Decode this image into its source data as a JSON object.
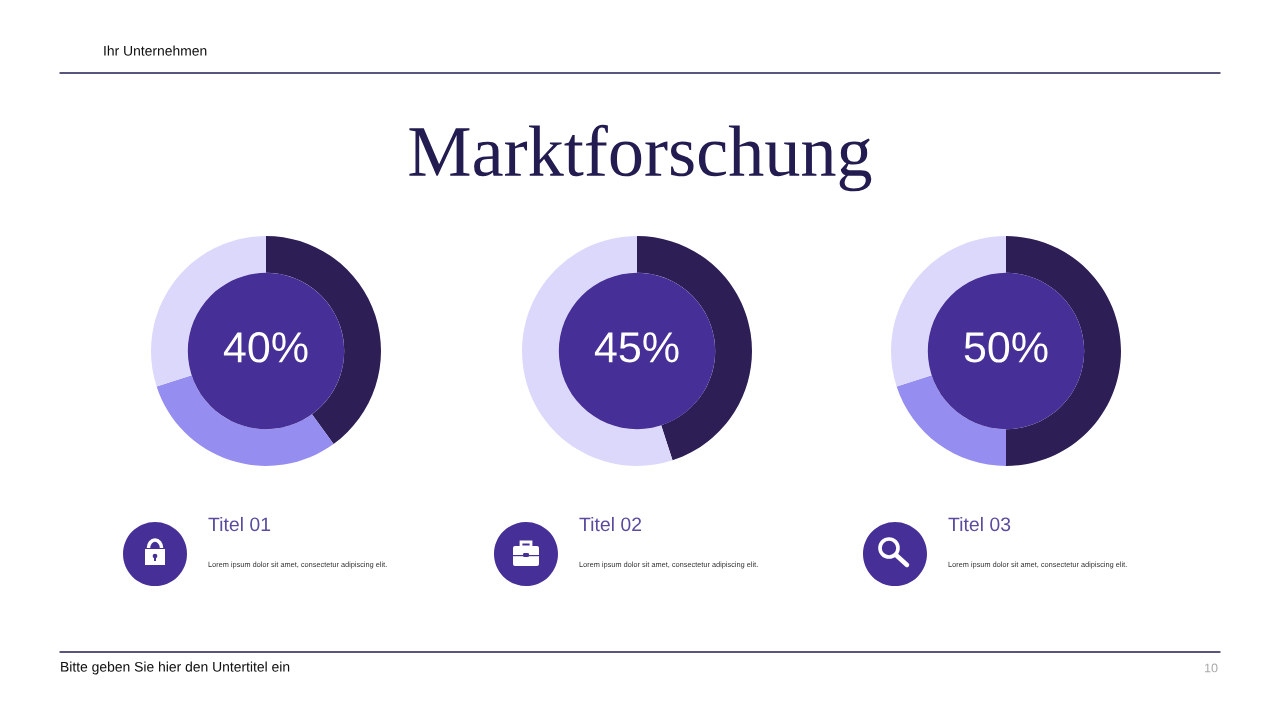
{
  "chart_data": [
    {
      "type": "other",
      "title": "Marktforschung",
      "annotations": [
        "Ihr Unternehmen",
        "Bitte geben Sie hier den Untertitel ein",
        "10"
      ]
    },
    {
      "type": "donut",
      "title": "Titel 01",
      "annotations": [
        "Lorem ipsum dolor sit amet, consectetur adipiscing elit."
      ],
      "categories": [
        null,
        null,
        null
      ],
      "values": [
        40,
        30,
        30
      ],
      "colors": [
        "#2d1e56",
        "#958ef0",
        "#dcd8fb"
      ],
      "value_labels": [
        "40%",
        null,
        null
      ]
    },
    {
      "type": "donut",
      "title": "Titel 02",
      "annotations": [
        "Lorem ipsum dolor sit amet, consectetur adipiscing elit."
      ],
      "categories": [
        null,
        null
      ],
      "values": [
        45,
        55
      ],
      "colors": [
        "#2d1e56",
        "#dcd8fb"
      ],
      "value_labels": [
        "45%",
        null
      ]
    },
    {
      "type": "donut",
      "title": "Titel 03",
      "annotations": [
        "Lorem ipsum dolor sit amet, consectetur adipiscing elit."
      ],
      "categories": [
        null,
        null,
        null
      ],
      "values": [
        50,
        20,
        30
      ],
      "colors": [
        "#2d1e56",
        "#958ef0",
        "#dcd8fb"
      ],
      "value_labels": [
        "50%",
        null,
        null
      ]
    }
  ]
}
